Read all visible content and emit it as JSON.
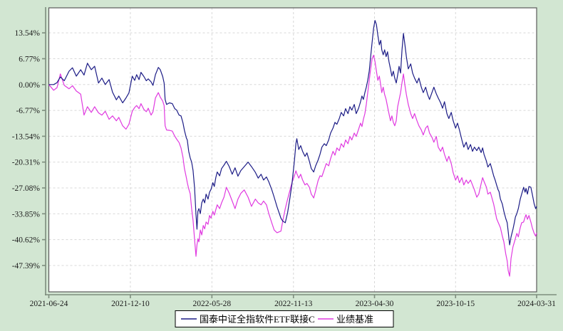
{
  "page": {
    "background_color": "#d2e6d2",
    "plot_background_color": "#ffffff",
    "plot_border_color": "#5a5a5a",
    "axis_line_color": "#7d8d7d",
    "grid_color": "#d8d8d8",
    "tick_label_color": "#1c1c1c"
  },
  "legend": {
    "items": [
      {
        "label": "国泰中证全指软件ETF联接C",
        "color": "#1c1c86"
      },
      {
        "label": "业绩基准",
        "color": "#e03ae0"
      }
    ],
    "border_color": "#000000",
    "background_color": "#ffffff"
  },
  "chart_data": {
    "type": "line",
    "title": "",
    "xlabel": "",
    "ylabel": "",
    "grid": true,
    "legend_position": "bottom-center",
    "x_axis": {
      "unit": "date",
      "tick_labels": [
        "2021-06-24",
        "2021-12-10",
        "2022-05-28",
        "2022-11-13",
        "2023-04-30",
        "2023-10-15",
        "2024-03-31"
      ],
      "tick_days": [
        0,
        169,
        338,
        507,
        675,
        843,
        1011
      ],
      "xlim_days": [
        0,
        1011
      ]
    },
    "y_axis": {
      "unit": "%",
      "tick_labels": [
        "13.54%",
        "6.77%",
        "0.00%",
        "-6.77%",
        "-13.54%",
        "-20.31%",
        "-27.08%",
        "-33.85%",
        "-40.62%",
        "-47.39%"
      ],
      "tick_values": [
        13.54,
        6.77,
        0,
        -6.77,
        -13.54,
        -20.31,
        -27.08,
        -33.85,
        -40.62,
        -47.39
      ],
      "ylim": [
        -54.3,
        20.1
      ]
    },
    "series": [
      {
        "name": "国泰中证全指软件ETF联接C",
        "color": "#1c1c86"
      },
      {
        "name": "业绩基准",
        "color": "#e03ae0"
      }
    ],
    "columns": [
      "day_offset_from_2021-06-24",
      "fund_cumulative_return_pct",
      "benchmark_cumulative_return_pct"
    ],
    "points": [
      [
        0,
        0.0,
        0.0
      ],
      [
        10,
        0.0,
        -1.5
      ],
      [
        17,
        0.5,
        -0.8
      ],
      [
        24,
        2.0,
        2.8
      ],
      [
        32,
        1.0,
        -0.2
      ],
      [
        42,
        3.5,
        -1.1
      ],
      [
        49,
        4.4,
        -0.3
      ],
      [
        57,
        2.2,
        -1.7
      ],
      [
        66,
        3.9,
        -2.5
      ],
      [
        73,
        2.5,
        -8.0
      ],
      [
        80,
        5.6,
        -5.8
      ],
      [
        88,
        3.9,
        -7.3
      ],
      [
        95,
        4.8,
        -5.8
      ],
      [
        103,
        0.4,
        -7.4
      ],
      [
        110,
        1.7,
        -8.0
      ],
      [
        117,
        0.0,
        -7.0
      ],
      [
        125,
        1.3,
        -9.1
      ],
      [
        132,
        -2.0,
        -8.2
      ],
      [
        140,
        -4.0,
        -9.5
      ],
      [
        145,
        -3.0,
        -8.6
      ],
      [
        153,
        -4.8,
        -10.8
      ],
      [
        160,
        -3.5,
        -11.7
      ],
      [
        166,
        -2.2,
        -10.4
      ],
      [
        173,
        2.2,
        -7.0
      ],
      [
        178,
        1.1,
        -6.0
      ],
      [
        182,
        2.6,
        -5.5
      ],
      [
        187,
        1.3,
        -6.3
      ],
      [
        191,
        3.2,
        -5.0
      ],
      [
        197,
        2.1,
        -6.5
      ],
      [
        202,
        1.0,
        -7.1
      ],
      [
        206,
        1.5,
        -6.2
      ],
      [
        212,
        0.7,
        -8.0
      ],
      [
        216,
        -0.2,
        -7.1
      ],
      [
        221,
        2.6,
        -3.5
      ],
      [
        227,
        4.5,
        -2.1
      ],
      [
        231,
        3.9,
        -3.3
      ],
      [
        236,
        2.1,
        -4.3
      ],
      [
        239,
        0.4,
        -5.5
      ],
      [
        241,
        -3.9,
        -10.8
      ],
      [
        244,
        -5.2,
        -11.9
      ],
      [
        250,
        -4.8,
        -12.0
      ],
      [
        256,
        -5.0,
        -12.2
      ],
      [
        261,
        -6.3,
        -13.5
      ],
      [
        265,
        -6.7,
        -14.3
      ],
      [
        270,
        -8.0,
        -15.2
      ],
      [
        274,
        -8.2,
        -16.6
      ],
      [
        278,
        -10.0,
        -19.0
      ],
      [
        281,
        -12.0,
        -22.0
      ],
      [
        285,
        -14.0,
        -24.4
      ],
      [
        287,
        -14.5,
        -25.7
      ],
      [
        290,
        -17.5,
        -27.3
      ],
      [
        293,
        -19.2,
        -28.6
      ],
      [
        296,
        -20.3,
        -32.5
      ],
      [
        299,
        -22.5,
        -35.6
      ],
      [
        302,
        -27.0,
        -40.5
      ],
      [
        305,
        -34.0,
        -45.0
      ],
      [
        307,
        -37.9,
        -42.0
      ],
      [
        309,
        -33.2,
        -40.4
      ],
      [
        311,
        -32.5,
        -41.2
      ],
      [
        314,
        -33.8,
        -38.1
      ],
      [
        317,
        -31.0,
        -39.4
      ],
      [
        320,
        -30.0,
        -36.9
      ],
      [
        323,
        -31.0,
        -37.8
      ],
      [
        326,
        -28.7,
        -36.0
      ],
      [
        330,
        -30.0,
        -36.6
      ],
      [
        333,
        -28.2,
        -34.3
      ],
      [
        336,
        -27.5,
        -35.0
      ],
      [
        340,
        -25.7,
        -33.2
      ],
      [
        343,
        -26.7,
        -34.2
      ],
      [
        346,
        -24.4,
        -32.8
      ],
      [
        349,
        -22.9,
        -31.5
      ],
      [
        354,
        -23.9,
        -32.5
      ],
      [
        358,
        -22.0,
        -31.0
      ],
      [
        363,
        -21.1,
        -29.5
      ],
      [
        368,
        -20.1,
        -26.9
      ],
      [
        374,
        -21.5,
        -28.5
      ],
      [
        380,
        -23.5,
        -30.5
      ],
      [
        386,
        -21.8,
        -32.5
      ],
      [
        392,
        -24.0,
        -30.0
      ],
      [
        398,
        -22.5,
        -28.5
      ],
      [
        405,
        -21.5,
        -27.6
      ],
      [
        413,
        -20.3,
        -29.5
      ],
      [
        420,
        -21.5,
        -31.9
      ],
      [
        428,
        -23.0,
        -30.0
      ],
      [
        434,
        -24.5,
        -31.0
      ],
      [
        440,
        -23.5,
        -31.5
      ],
      [
        445,
        -25.0,
        -30.5
      ],
      [
        451,
        -24.2,
        -31.5
      ],
      [
        456,
        -25.5,
        -33.8
      ],
      [
        462,
        -27.5,
        -36.2
      ],
      [
        467,
        -29.5,
        -38.1
      ],
      [
        473,
        -32.0,
        -38.8
      ],
      [
        481,
        -35.0,
        -38.4
      ],
      [
        485,
        -35.8,
        -35.6
      ],
      [
        490,
        -36.2,
        -32.5
      ],
      [
        495,
        -33.5,
        -30.0
      ],
      [
        500,
        -29.5,
        -27.6
      ],
      [
        504,
        -26.0,
        -25.7
      ],
      [
        509,
        -20.0,
        -23.9
      ],
      [
        512,
        -15.5,
        -22.6
      ],
      [
        514,
        -14.2,
        -23.3
      ],
      [
        518,
        -17.0,
        -24.5
      ],
      [
        522,
        -16.0,
        -23.5
      ],
      [
        526,
        -17.5,
        -25.0
      ],
      [
        531,
        -18.8,
        -26.3
      ],
      [
        535,
        -17.9,
        -25.9
      ],
      [
        540,
        -20.1,
        -26.9
      ],
      [
        544,
        -22.0,
        -28.7
      ],
      [
        549,
        -22.9,
        -29.7
      ],
      [
        553,
        -21.3,
        -27.8
      ],
      [
        558,
        -19.8,
        -25.2
      ],
      [
        562,
        -18.3,
        -23.9
      ],
      [
        566,
        -16.4,
        -24.1
      ],
      [
        571,
        -15.5,
        -22.2
      ],
      [
        575,
        -16.0,
        -20.7
      ],
      [
        580,
        -14.5,
        -21.3
      ],
      [
        584,
        -12.7,
        -19.4
      ],
      [
        589,
        -11.4,
        -17.5
      ],
      [
        593,
        -9.9,
        -18.5
      ],
      [
        597,
        -10.4,
        -16.6
      ],
      [
        602,
        -8.9,
        -17.3
      ],
      [
        606,
        -7.3,
        -15.5
      ],
      [
        611,
        -8.2,
        -16.4
      ],
      [
        615,
        -6.3,
        -14.5
      ],
      [
        620,
        -7.6,
        -15.5
      ],
      [
        624,
        -5.8,
        -13.6
      ],
      [
        628,
        -6.7,
        -14.5
      ],
      [
        633,
        -5.2,
        -12.7
      ],
      [
        637,
        -7.6,
        -13.6
      ],
      [
        642,
        -6.2,
        -11.7
      ],
      [
        646,
        -4.5,
        -10.1
      ],
      [
        649,
        -3.0,
        -11.0
      ],
      [
        652,
        -3.9,
        -9.1
      ],
      [
        655,
        -2.1,
        -7.6
      ],
      [
        658,
        -0.7,
        -5.2
      ],
      [
        661,
        1.1,
        -2.1
      ],
      [
        664,
        3.5,
        1.1
      ],
      [
        667,
        7.3,
        4.1
      ],
      [
        670,
        11.0,
        6.7
      ],
      [
        673,
        14.7,
        7.7
      ],
      [
        676,
        16.8,
        6.0
      ],
      [
        679,
        15.7,
        3.5
      ],
      [
        682,
        12.9,
        1.1
      ],
      [
        685,
        10.4,
        2.2
      ],
      [
        688,
        11.6,
        -0.2
      ],
      [
        690,
        9.1,
        -2.1
      ],
      [
        693,
        7.8,
        -0.7
      ],
      [
        696,
        9.1,
        -2.6
      ],
      [
        699,
        7.3,
        -3.9
      ],
      [
        702,
        8.6,
        -5.8
      ],
      [
        705,
        6.0,
        -7.6
      ],
      [
        708,
        4.1,
        -9.5
      ],
      [
        711,
        2.2,
        -8.2
      ],
      [
        714,
        3.5,
        -9.9
      ],
      [
        717,
        1.7,
        -10.8
      ],
      [
        720,
        0.4,
        -9.5
      ],
      [
        723,
        2.5,
        -5.8
      ],
      [
        726,
        4.8,
        -4.0
      ],
      [
        729,
        3.0,
        -2.1
      ],
      [
        732,
        9.1,
        0.5
      ],
      [
        735,
        13.4,
        2.8
      ],
      [
        738,
        10.4,
        -0.2
      ],
      [
        741,
        7.3,
        -2.6
      ],
      [
        745,
        4.1,
        -5.2
      ],
      [
        750,
        5.4,
        -7.6
      ],
      [
        754,
        3.0,
        -8.9
      ],
      [
        758,
        1.7,
        -7.6
      ],
      [
        763,
        0.4,
        -9.5
      ],
      [
        767,
        1.7,
        -10.8
      ],
      [
        772,
        -0.7,
        -11.9
      ],
      [
        776,
        -2.1,
        -13.2
      ],
      [
        781,
        -0.7,
        -11.4
      ],
      [
        785,
        -2.6,
        -10.8
      ],
      [
        789,
        -3.9,
        -12.7
      ],
      [
        794,
        -2.1,
        -13.8
      ],
      [
        798,
        -0.7,
        -15.1
      ],
      [
        803,
        -2.4,
        -13.6
      ],
      [
        807,
        -3.5,
        -16.4
      ],
      [
        812,
        -4.8,
        -17.5
      ],
      [
        816,
        -6.2,
        -16.4
      ],
      [
        820,
        -4.5,
        -18.3
      ],
      [
        825,
        -7.6,
        -20.1
      ],
      [
        829,
        -8.9,
        -18.8
      ],
      [
        834,
        -7.3,
        -20.7
      ],
      [
        838,
        -9.5,
        -23.1
      ],
      [
        843,
        -11.4,
        -25.0
      ],
      [
        847,
        -10.1,
        -23.9
      ],
      [
        851,
        -11.9,
        -25.7
      ],
      [
        856,
        -14.5,
        -24.4
      ],
      [
        860,
        -16.4,
        -26.3
      ],
      [
        865,
        -15.1,
        -25.0
      ],
      [
        869,
        -17.0,
        -25.9
      ],
      [
        874,
        -15.7,
        -25.0
      ],
      [
        878,
        -17.5,
        -26.3
      ],
      [
        882,
        -16.4,
        -27.6
      ],
      [
        887,
        -17.3,
        -29.5
      ],
      [
        891,
        -16.4,
        -28.7
      ],
      [
        896,
        -17.8,
        -26.0
      ],
      [
        899,
        -16.6,
        -24.4
      ],
      [
        902,
        -18.3,
        -25.4
      ],
      [
        907,
        -20.1,
        -26.9
      ],
      [
        910,
        -21.6,
        -28.7
      ],
      [
        915,
        -20.7,
        -28.2
      ],
      [
        918,
        -22.0,
        -29.5
      ],
      [
        922,
        -23.9,
        -31.3
      ],
      [
        925,
        -25.0,
        -33.2
      ],
      [
        928,
        -26.3,
        -35.1
      ],
      [
        931,
        -27.5,
        -36.0
      ],
      [
        933,
        -28.0,
        -36.6
      ],
      [
        936,
        -30.0,
        -37.5
      ],
      [
        940,
        -31.3,
        -39.7
      ],
      [
        943,
        -33.2,
        -41.2
      ],
      [
        947,
        -35.1,
        -44.4
      ],
      [
        950,
        -36.2,
        -46.2
      ],
      [
        952,
        -38.5,
        -48.7
      ],
      [
        955,
        -42.0,
        -50.2
      ],
      [
        958,
        -39.9,
        -45.5
      ],
      [
        962,
        -37.9,
        -42.5
      ],
      [
        965,
        -36.0,
        -41.2
      ],
      [
        967,
        -34.7,
        -40.3
      ],
      [
        970,
        -33.8,
        -39.0
      ],
      [
        973,
        -32.5,
        -39.9
      ],
      [
        977,
        -30.0,
        -37.5
      ],
      [
        980,
        -28.7,
        -36.2
      ],
      [
        984,
        -26.9,
        -36.0
      ],
      [
        987,
        -28.2,
        -34.7
      ],
      [
        989,
        -27.2,
        -34.1
      ],
      [
        992,
        -28.7,
        -35.3
      ],
      [
        995,
        -26.7,
        -34.3
      ],
      [
        999,
        -26.9,
        -36.0
      ],
      [
        1002,
        -28.7,
        -37.5
      ],
      [
        1006,
        -31.3,
        -39.0
      ],
      [
        1009,
        -32.5,
        -39.7
      ],
      [
        1011,
        -31.9,
        -38.8
      ]
    ]
  }
}
